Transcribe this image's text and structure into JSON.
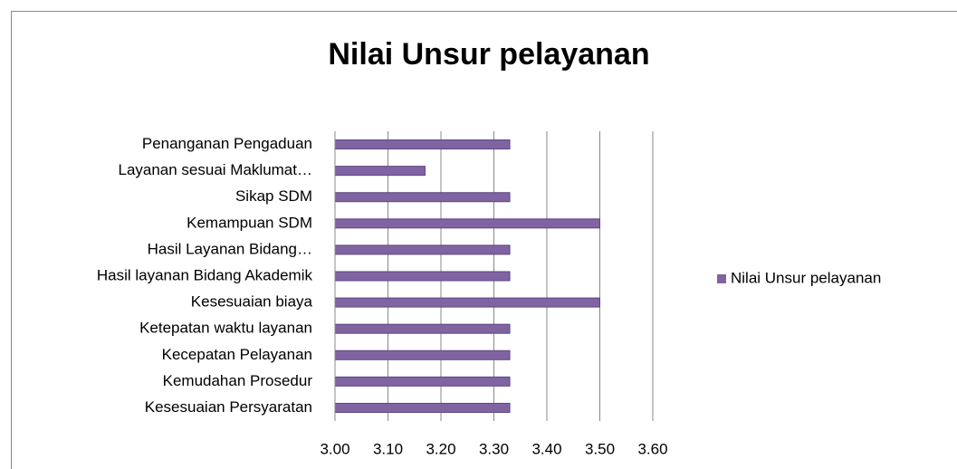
{
  "chart_data": {
    "type": "bar",
    "orientation": "horizontal",
    "title": "Nilai Unsur pelayanan",
    "categories": [
      "Kesesuaian Persyaratan",
      "Kemudahan Prosedur",
      "Kecepatan Pelayanan",
      "Ketepatan waktu layanan",
      "Kesesuaian biaya",
      "Hasil layanan Bidang Akademik",
      "Hasil Layanan Bidang…",
      "Kemampuan SDM",
      "Sikap SDM",
      "Layanan sesuai Maklumat…",
      "Penanganan Pengaduan"
    ],
    "series": [
      {
        "name": "Nilai Unsur pelayanan",
        "color": "#8064a2",
        "values": [
          3.33,
          3.33,
          3.33,
          3.33,
          3.5,
          3.33,
          3.33,
          3.5,
          3.33,
          3.17,
          3.33
        ]
      }
    ],
    "xlim": [
      3,
      3.6
    ],
    "xticks": [
      {
        "value": 3,
        "label": "3.00"
      },
      {
        "value": 3.1,
        "label": "3.10"
      },
      {
        "value": 3.2,
        "label": "3.20"
      },
      {
        "value": 3.3,
        "label": "3.30"
      },
      {
        "value": 3.4,
        "label": "3.40"
      },
      {
        "value": 3.5,
        "label": "3.50"
      },
      {
        "value": 3.6,
        "label": "3.60"
      }
    ],
    "grid": true,
    "legend": "right"
  }
}
